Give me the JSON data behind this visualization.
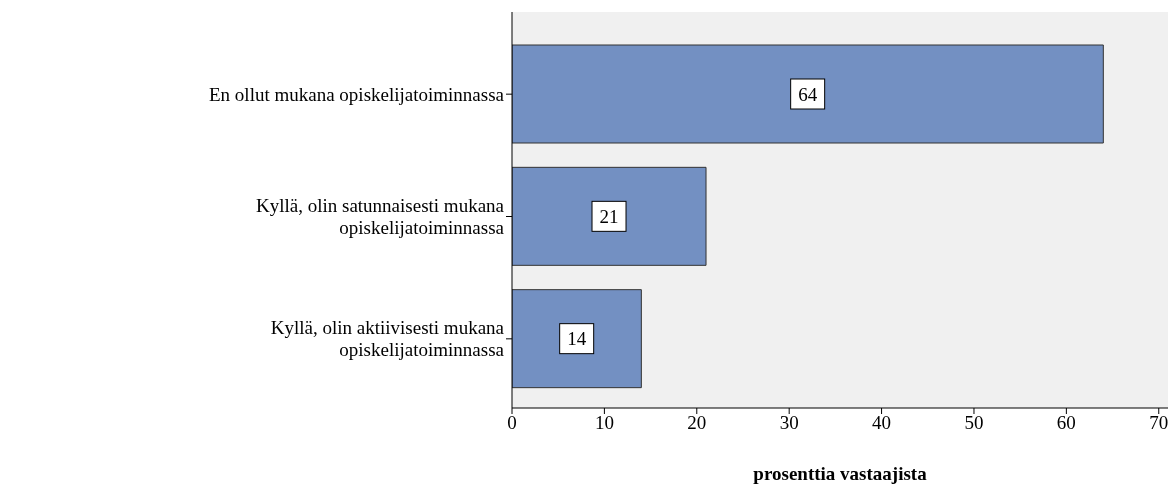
{
  "chart_data": {
    "type": "bar",
    "orientation": "horizontal",
    "xlabel": "prosenttia vastaajista",
    "categories": [
      "En ollut mukana opiskelijatoiminnassa",
      "Kyllä, olin satunnaisesti mukana opiskelijatoiminnassa",
      "Kyllä, olin aktiivisesti mukana opiskelijatoiminnassa"
    ],
    "values": [
      64,
      21,
      14
    ],
    "color": "#7390c2",
    "xlim": [
      0,
      71
    ],
    "xticks": [
      0,
      10,
      20,
      30,
      40,
      50,
      60,
      70
    ],
    "data_labels": true,
    "grid": false,
    "legend": false
  }
}
